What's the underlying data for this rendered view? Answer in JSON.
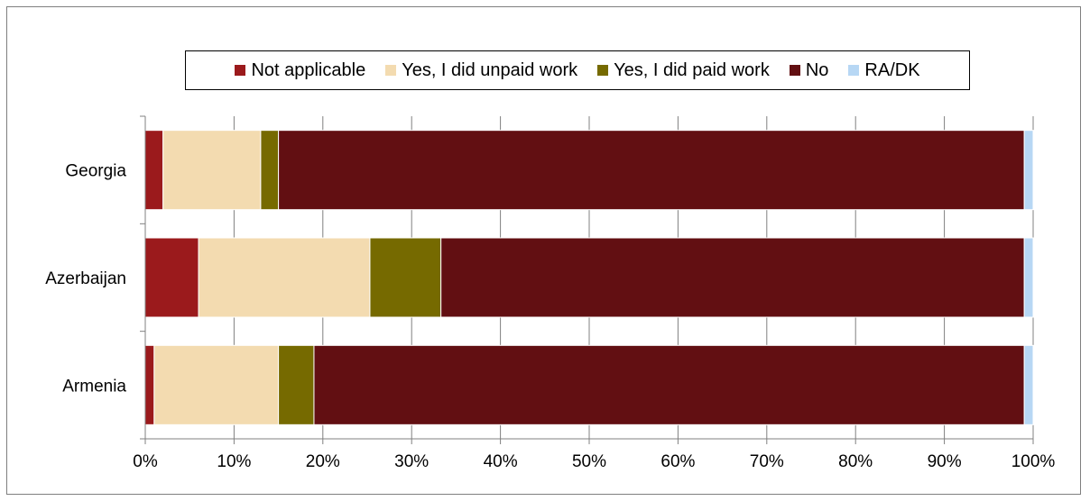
{
  "chart_data": {
    "type": "bar",
    "orientation": "horizontal",
    "stacked": true,
    "categories": [
      "Georgia",
      "Azerbaijan",
      "Armenia"
    ],
    "series": [
      {
        "name": "Not applicable",
        "color": "#9b1a1c",
        "values": [
          2,
          6,
          1
        ]
      },
      {
        "name": "Yes, I did unpaid work",
        "color": "#f3dbb0",
        "values": [
          11,
          19.3,
          14
        ]
      },
      {
        "name": "Yes, I did paid work",
        "color": "#766a00",
        "values": [
          2,
          8,
          4
        ]
      },
      {
        "name": "No",
        "color": "#620f12",
        "values": [
          84,
          65.7,
          80
        ]
      },
      {
        "name": "RA/DK",
        "color": "#b7d7f4",
        "values": [
          1,
          1,
          1
        ]
      }
    ],
    "xlim": [
      0,
      100
    ],
    "x_ticks": [
      "0%",
      "10%",
      "20%",
      "30%",
      "40%",
      "50%",
      "60%",
      "70%",
      "80%",
      "90%",
      "100%"
    ],
    "xlabel": "",
    "ylabel": "",
    "grid": "vertical",
    "legend_position": "top"
  }
}
